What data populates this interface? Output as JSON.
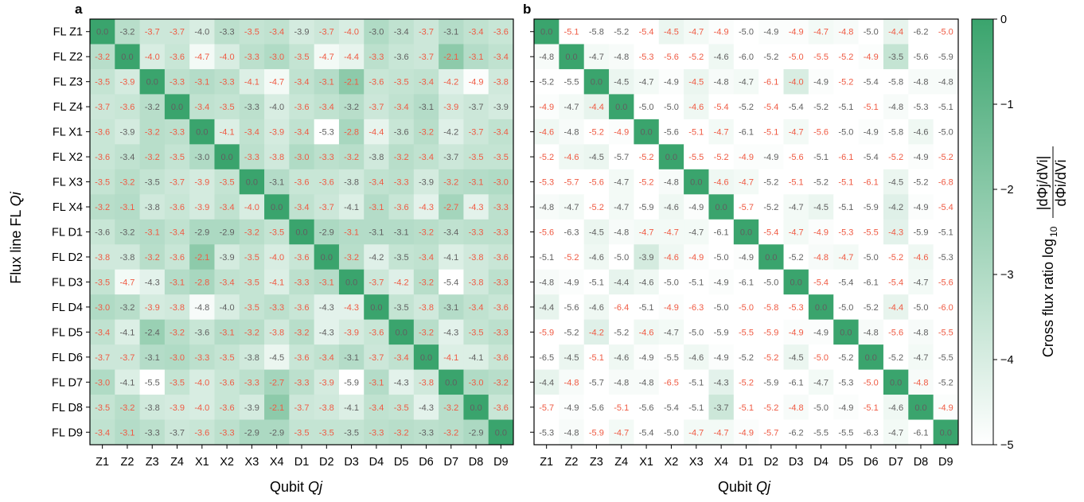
{
  "colors": {
    "scale_max": "#3aa46d",
    "scale_min": "#ffffff",
    "label_highlight": "#ef5a43",
    "label_normal": "#606060"
  },
  "chart_data": [
    {
      "panel": "a",
      "type": "heatmap",
      "xlabel": "Qubit  Qj",
      "ylabel": "Flux line  FL Qi",
      "x_categories": [
        "Z1",
        "Z2",
        "Z3",
        "Z4",
        "X1",
        "X2",
        "X3",
        "X4",
        "D1",
        "D2",
        "D3",
        "D4",
        "D5",
        "D6",
        "D7",
        "D8",
        "D9"
      ],
      "y_categories": [
        "FL Z1",
        "FL Z2",
        "FL Z3",
        "FL Z4",
        "FL X1",
        "FL X2",
        "FL X3",
        "FL X4",
        "FL D1",
        "FL D2",
        "FL D3",
        "FL D4",
        "FL D5",
        "FL D6",
        "FL D7",
        "FL D8",
        "FL D9"
      ],
      "values": [
        [
          0.0,
          -3.2,
          -3.7,
          -3.7,
          -4.0,
          -3.3,
          -3.5,
          -3.4,
          -3.9,
          -3.7,
          -4.0,
          -3.0,
          -3.4,
          -3.7,
          -3.1,
          -3.4,
          -3.6
        ],
        [
          -3.2,
          0.0,
          -4.0,
          -3.6,
          -4.7,
          -4.0,
          -3.3,
          -3.0,
          -3.5,
          -4.7,
          -4.4,
          -3.3,
          -3.6,
          -3.7,
          -2.1,
          -3.1,
          -3.4
        ],
        [
          -3.5,
          -3.9,
          0.0,
          -3.3,
          -3.1,
          -3.3,
          -4.1,
          -4.7,
          -3.4,
          -3.1,
          -2.1,
          -3.6,
          -3.5,
          -3.4,
          -4.2,
          -4.9,
          -3.8
        ],
        [
          -3.7,
          -3.6,
          -3.2,
          0.0,
          -3.4,
          -3.5,
          -3.3,
          -4.0,
          -3.6,
          -3.4,
          -3.2,
          -3.7,
          -3.4,
          -3.1,
          -3.9,
          -3.7,
          -3.9
        ],
        [
          -3.6,
          -3.9,
          -3.2,
          -3.3,
          0.0,
          -4.1,
          -3.4,
          -3.9,
          -3.4,
          -5.3,
          -2.8,
          -4.4,
          -3.6,
          -3.2,
          -4.2,
          -3.7,
          -3.4
        ],
        [
          -3.6,
          -3.4,
          -3.2,
          -3.5,
          -3.0,
          0.0,
          -3.3,
          -3.8,
          -3.0,
          -3.3,
          -3.2,
          -3.8,
          -3.2,
          -3.4,
          -3.7,
          -3.5,
          -3.5
        ],
        [
          -3.5,
          -3.2,
          -3.5,
          -3.7,
          -3.9,
          -3.5,
          0.0,
          -3.1,
          -3.6,
          -3.6,
          -3.8,
          -3.4,
          -3.3,
          -3.9,
          -3.2,
          -3.1,
          -3.0
        ],
        [
          -3.2,
          -3.1,
          -3.8,
          -3.6,
          -3.9,
          -3.4,
          -4.0,
          0.0,
          -3.4,
          -3.7,
          -4.1,
          -3.1,
          -3.6,
          -4.3,
          -2.7,
          -4.3,
          -3.3
        ],
        [
          -3.6,
          -3.2,
          -3.1,
          -3.4,
          -2.9,
          -2.9,
          -3.2,
          -3.5,
          0.0,
          -2.9,
          -3.1,
          -3.1,
          -3.1,
          -3.2,
          -3.4,
          -3.3,
          -3.3
        ],
        [
          -3.8,
          -3.8,
          -3.2,
          -3.6,
          -2.1,
          -3.9,
          -3.5,
          -4.0,
          -3.6,
          0.0,
          -3.2,
          -4.2,
          -3.5,
          -3.4,
          -4.1,
          -3.8,
          -3.6
        ],
        [
          -3.5,
          -4.7,
          -4.3,
          -3.1,
          -2.8,
          -3.4,
          -3.5,
          -4.1,
          -3.3,
          -3.1,
          0.0,
          -3.7,
          -4.2,
          -3.2,
          -5.4,
          -3.8,
          -3.3
        ],
        [
          -3.0,
          -3.2,
          -3.9,
          -3.8,
          -4.8,
          -4.0,
          -3.5,
          -3.3,
          -3.6,
          -4.3,
          -4.3,
          0.0,
          -3.5,
          -3.8,
          -3.1,
          -3.4,
          -3.6
        ],
        [
          -3.4,
          -4.1,
          -2.4,
          -3.2,
          -3.6,
          -3.1,
          -3.2,
          -3.8,
          -3.2,
          -4.3,
          -3.9,
          -3.6,
          0.0,
          -3.2,
          -4.3,
          -3.5,
          -3.3
        ],
        [
          -3.7,
          -3.7,
          -3.1,
          -3.0,
          -3.3,
          -3.5,
          -3.8,
          -4.5,
          -3.6,
          -3.4,
          -3.1,
          -3.7,
          -3.4,
          0.0,
          -4.1,
          -4.1,
          -3.6
        ],
        [
          -3.0,
          -4.1,
          -5.5,
          -3.5,
          -4.0,
          -3.6,
          -3.3,
          -2.7,
          -3.3,
          -3.9,
          -5.9,
          -3.1,
          -4.3,
          -3.8,
          0.0,
          -3.0,
          -3.2
        ],
        [
          -3.5,
          -3.2,
          -3.8,
          -3.9,
          -4.0,
          -3.6,
          -3.9,
          -2.1,
          -3.7,
          -3.8,
          -4.1,
          -3.4,
          -3.5,
          -4.3,
          -3.2,
          0.0,
          -3.6
        ],
        [
          -3.4,
          -3.1,
          -3.3,
          -3.7,
          -3.6,
          -3.3,
          -2.9,
          -2.9,
          -3.5,
          -3.5,
          -3.5,
          -3.3,
          -3.2,
          -3.3,
          -3.2,
          -2.9,
          0.0
        ]
      ],
      "label_colors": [
        "nnhhnnhhnhhnnhnhh",
        "hnhhhhhhhhhhnhhhh",
        "hhnhhhhhhhhhhhhhh",
        "hhnnhhnnhhnhhnhnn",
        "hnhhnhhhhnhhnhnhh",
        "hnhhnnhhhhhnhhnhh",
        "hhnhhhnnhhnhhnhhh",
        "hhnhhhhnhhnhhhhhh",
        "nnhhnnhhnnhnnhnhh",
        "hnhhhnhhhnhnnhnhh",
        "hhnhhhhhhhnhhhnhh",
        "hnhhnnhhhnhnnhnhh",
        "hnnhnhhhhnhhnhnhh",
        "hhnhhhnnhhnhhnhnh",
        "hnnhhhhhhhnhnhnhh",
        "hhnhhhnhhhnhhnhnh",
        "hhnnhhnnhhnhhnhnn"
      ]
    },
    {
      "panel": "b",
      "type": "heatmap",
      "xlabel": "Qubit  Qj",
      "x_categories": [
        "Z1",
        "Z2",
        "Z3",
        "Z4",
        "X1",
        "X2",
        "X3",
        "X4",
        "D1",
        "D2",
        "D3",
        "D4",
        "D5",
        "D6",
        "D7",
        "D8",
        "D9"
      ],
      "values": [
        [
          0.0,
          -5.1,
          -5.8,
          -5.2,
          -5.4,
          -4.5,
          -4.7,
          -4.9,
          -5.0,
          -4.9,
          -4.9,
          -4.7,
          -4.8,
          -5.0,
          -4.4,
          -6.2,
          -5.0
        ],
        [
          -4.8,
          0.0,
          -4.7,
          -4.8,
          -5.3,
          -5.6,
          -5.2,
          -4.6,
          -6.0,
          -5.2,
          -5.0,
          -5.5,
          -5.2,
          -4.9,
          -3.5,
          -5.6,
          -5.9
        ],
        [
          -5.2,
          -5.5,
          0.0,
          -4.5,
          -4.7,
          -4.9,
          -4.5,
          -4.8,
          -4.7,
          -6.1,
          -4.0,
          -4.9,
          -5.2,
          -5.4,
          -5.8,
          -4.8,
          -4.8
        ],
        [
          -4.9,
          -4.7,
          -4.4,
          0.0,
          -5.0,
          -5.0,
          -4.6,
          -5.4,
          -5.2,
          -5.4,
          -5.4,
          -5.2,
          -5.1,
          -5.1,
          -4.8,
          -5.3,
          -5.1
        ],
        [
          -4.6,
          -4.8,
          -5.2,
          -4.9,
          0.0,
          -5.6,
          -5.1,
          -4.7,
          -6.1,
          -5.1,
          -4.7,
          -5.6,
          -5.0,
          -4.9,
          -5.8,
          -4.6,
          -5.0
        ],
        [
          -5.2,
          -4.6,
          -4.5,
          -5.7,
          -5.2,
          0.0,
          -5.5,
          -5.2,
          -4.9,
          -4.9,
          -5.6,
          -5.1,
          -6.1,
          -5.4,
          -5.2,
          -4.9,
          -5.2
        ],
        [
          -5.3,
          -5.7,
          -5.6,
          -4.7,
          -5.2,
          -4.8,
          0.0,
          -4.6,
          -4.7,
          -5.2,
          -5.1,
          -5.2,
          -5.1,
          -6.1,
          -4.5,
          -5.2,
          -6.8
        ],
        [
          -4.8,
          -4.7,
          -5.2,
          -4.7,
          -5.9,
          -4.6,
          -4.9,
          0.0,
          -5.7,
          -5.2,
          -4.7,
          -4.5,
          -5.1,
          -5.9,
          -4.2,
          -4.9,
          -5.4
        ],
        [
          -5.6,
          -6.3,
          -4.5,
          -4.8,
          -4.7,
          -4.7,
          -4.7,
          -6.1,
          0.0,
          -5.4,
          -4.7,
          -4.9,
          -5.3,
          -5.5,
          -4.3,
          -5.9,
          -5.1
        ],
        [
          -5.1,
          -5.2,
          -4.6,
          -5.0,
          -3.9,
          -4.6,
          -4.9,
          -5.0,
          -4.9,
          0.0,
          -5.2,
          -4.8,
          -4.7,
          -5.0,
          -5.2,
          -4.6,
          -5.3
        ],
        [
          -4.8,
          -4.9,
          -5.1,
          -4.4,
          -4.6,
          -5.0,
          -5.1,
          -4.9,
          -6.1,
          -5.0,
          0.0,
          -5.4,
          -5.4,
          -6.1,
          -5.4,
          -4.7,
          -5.6
        ],
        [
          -4.4,
          -5.6,
          -4.6,
          -6.4,
          -5.1,
          -4.9,
          -6.3,
          -5.0,
          -5.0,
          -5.8,
          -5.3,
          0.0,
          -5.0,
          -5.2,
          -4.4,
          -5.0,
          -6.0
        ],
        [
          -5.9,
          -5.2,
          -4.2,
          -5.2,
          -4.6,
          -4.7,
          -5.0,
          -5.9,
          -5.5,
          -5.9,
          -4.9,
          -4.9,
          0.0,
          -4.8,
          -5.6,
          -4.8,
          -5.5
        ],
        [
          -6.5,
          -4.5,
          -5.1,
          -4.6,
          -4.9,
          -5.5,
          -4.6,
          -4.9,
          -5.2,
          -5.2,
          -4.5,
          -5.0,
          -5.2,
          0.0,
          -5.2,
          -4.7,
          -5.5
        ],
        [
          -4.4,
          -4.8,
          -5.7,
          -4.8,
          -4.8,
          -6.5,
          -5.1,
          -4.3,
          -5.2,
          -5.9,
          -6.1,
          -4.7,
          -5.3,
          -5.0,
          0.0,
          -4.8,
          -5.2
        ],
        [
          -5.7,
          -4.9,
          -5.6,
          -5.1,
          -5.6,
          -5.4,
          -5.1,
          -3.7,
          -5.1,
          -5.2,
          -4.8,
          -5.0,
          -4.9,
          -5.1,
          -4.6,
          0.0,
          -4.9
        ],
        [
          -5.3,
          -4.8,
          -5.9,
          -4.7,
          -5.4,
          -5.0,
          -4.7,
          -4.7,
          -4.9,
          -5.7,
          -6.2,
          -5.5,
          -5.5,
          -6.3,
          -4.7,
          -6.1,
          0.0
        ]
      ],
      "label_colors": [
        "nhnnhhhhnnhhhnhnh",
        "nnnnhhhnnnhhhhnnn",
        "nnnnnnhnnhhnhnnnn",
        "hnhnnnhhnhnnnhnnn",
        "hnhhnnhhnhhhnnnnn",
        "hhnnhnhhhnhnhnhnh",
        "hhhnhnnhhnhnhhnnh",
        "nnhnnnnnhnnnnnnnh",
        "hnnnhhnnnhhhhhhnn",
        "nhnnnhhnnnnhhnhhn",
        "nnnnnnnnnnnhnnhnh",
        "nnnhnhhnhhhnnnhnh",
        "hnhnhnnnhhhnnnhnh",
        "nnhnnnnnnhnhnnnnn",
        "nhnnnhnnhnnnnhnhn",
        "hnnhnnnnhhhnnhnnh",
        "nnhhnnhhhhnnnnnnn"
      ]
    }
  ],
  "colorbar": {
    "label_main": "Cross flux ratio  log",
    "label_subscript": "10",
    "numerator": "|dΦj/dVi|",
    "denominator": "dΦi/dVi",
    "ticks": [
      "0",
      "−1",
      "−2",
      "−3",
      "−4",
      "−5"
    ],
    "range": [
      -5,
      0
    ]
  }
}
